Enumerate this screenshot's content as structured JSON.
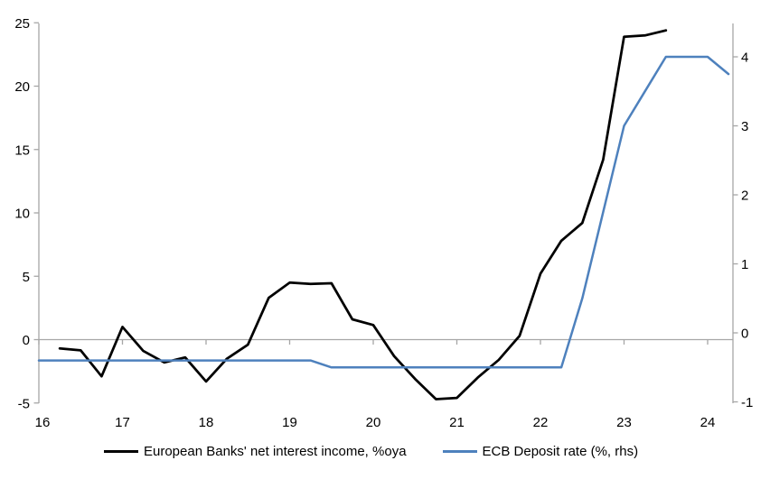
{
  "chart_data": {
    "type": "line",
    "title": "",
    "grid": "zero-line-only",
    "legend_position": "bottom",
    "x_axis": {
      "tick_labels": [
        "16",
        "17",
        "18",
        "19",
        "20",
        "21",
        "22",
        "23",
        "24"
      ],
      "tick_values": [
        16,
        17,
        18,
        19,
        20,
        21,
        22,
        23,
        24
      ],
      "range": [
        16,
        24.3
      ]
    },
    "left_axis": {
      "tick_labels": [
        "-5",
        "0",
        "5",
        "10",
        "15",
        "20",
        "25"
      ],
      "tick_values": [
        -5,
        0,
        5,
        10,
        15,
        20,
        25
      ],
      "range": [
        -5,
        25
      ]
    },
    "right_axis": {
      "tick_labels": [
        "-1",
        "0",
        "1",
        "2",
        "3",
        "4"
      ],
      "tick_values": [
        -1,
        0,
        1,
        2,
        3,
        4
      ],
      "range": [
        -1.05,
        4.48
      ]
    },
    "series": [
      {
        "name": "European Banks' net interest income, %oya",
        "axis": "left",
        "color": "#000000",
        "points": [
          [
            16.25,
            -0.7
          ],
          [
            16.5,
            -0.85
          ],
          [
            16.75,
            -2.9
          ],
          [
            17.0,
            1.0
          ],
          [
            17.25,
            -0.9
          ],
          [
            17.5,
            -1.8
          ],
          [
            17.75,
            -1.4
          ],
          [
            18.0,
            -3.3
          ],
          [
            18.25,
            -1.5
          ],
          [
            18.5,
            -0.4
          ],
          [
            18.75,
            3.3
          ],
          [
            19.0,
            4.5
          ],
          [
            19.25,
            4.4
          ],
          [
            19.5,
            4.45
          ],
          [
            19.75,
            1.6
          ],
          [
            20.0,
            1.15
          ],
          [
            20.25,
            -1.3
          ],
          [
            20.5,
            -3.1
          ],
          [
            20.75,
            -4.7
          ],
          [
            21.0,
            -4.6
          ],
          [
            21.25,
            -3.0
          ],
          [
            21.5,
            -1.6
          ],
          [
            21.75,
            0.3
          ],
          [
            22.0,
            5.2
          ],
          [
            22.25,
            7.8
          ],
          [
            22.5,
            9.2
          ],
          [
            22.75,
            14.2
          ],
          [
            23.0,
            23.9
          ],
          [
            23.25,
            24.0
          ],
          [
            23.5,
            24.4
          ]
        ]
      },
      {
        "name": "ECB Deposit rate (%, rhs)",
        "axis": "right",
        "color": "#4e81bd",
        "points": [
          [
            16.0,
            -0.4
          ],
          [
            19.25,
            -0.4
          ],
          [
            19.5,
            -0.5
          ],
          [
            22.25,
            -0.5
          ],
          [
            22.5,
            0.5
          ],
          [
            22.75,
            1.75
          ],
          [
            23.0,
            3.0
          ],
          [
            23.25,
            3.5
          ],
          [
            23.5,
            4.0
          ],
          [
            24.0,
            4.0
          ],
          [
            24.25,
            3.75
          ]
        ]
      }
    ]
  },
  "legend": {
    "items": [
      {
        "label": "European Banks' net interest income, %oya",
        "color": "#000000"
      },
      {
        "label": "ECB Deposit rate (%, rhs)",
        "color": "#4e81bd"
      }
    ]
  },
  "colors": {
    "axis": "#a6a6a6",
    "background": "#ffffff",
    "black_series": "#000000",
    "blue_series": "#4e81bd"
  }
}
